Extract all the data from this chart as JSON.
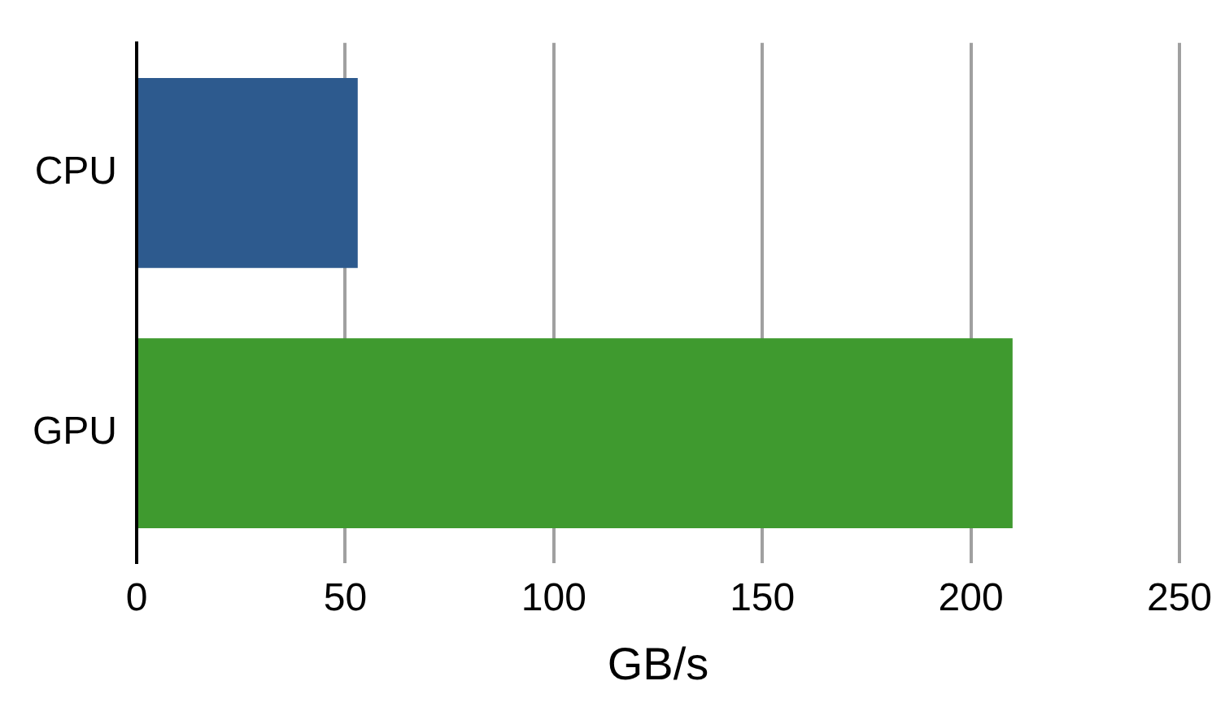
{
  "chart_data": {
    "type": "bar",
    "orientation": "horizontal",
    "categories": [
      "CPU",
      "GPU"
    ],
    "values": [
      53,
      210
    ],
    "colors": [
      "#2d5a8e",
      "#3f9a2f"
    ],
    "xlabel": "GB/s",
    "xlim": [
      0,
      250
    ],
    "xticks": [
      0,
      50,
      100,
      150,
      200,
      250
    ],
    "grid": "x"
  }
}
